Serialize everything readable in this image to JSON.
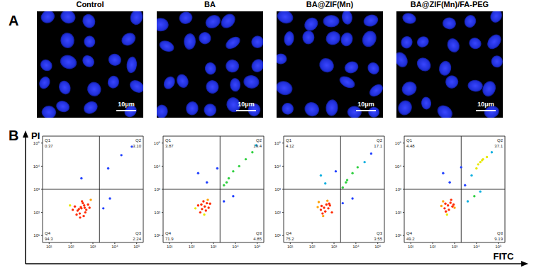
{
  "figure": {
    "panel_labels": [
      "A",
      "B"
    ],
    "xlabel": "FITC",
    "ylabel": "PI"
  },
  "images": {
    "titles": [
      "Control",
      "BA",
      "BA@ZIF(Mn)",
      "BA@ZIF(Mn)/FA-PEG"
    ],
    "scale_bar": "10μm"
  },
  "chart_data": [
    {
      "type": "scatter",
      "log": true,
      "xlim": [
        5,
        200000
      ],
      "ylim": [
        5,
        200000
      ],
      "xticks": [
        {
          "value": 10,
          "label": "10¹"
        },
        {
          "value": 100,
          "label": "10²"
        },
        {
          "value": 1000,
          "label": "10³"
        },
        {
          "value": 10000,
          "label": "10⁴"
        },
        {
          "value": 100000,
          "label": "10⁵"
        }
      ],
      "yticks": [
        {
          "value": 10,
          "label": "10¹"
        },
        {
          "value": 100,
          "label": "10²"
        },
        {
          "value": 1000,
          "label": "10³"
        },
        {
          "value": 10000,
          "label": "10⁴"
        },
        {
          "value": 100000,
          "label": "10⁵"
        }
      ],
      "gates": {
        "x": 2000,
        "y": 1000
      },
      "quadrants": [
        {
          "name": "Q1",
          "value": 0.37
        },
        {
          "name": "Q2",
          "value": 3.1,
          "label": "3.10"
        },
        {
          "name": "Q3",
          "value": 2.24
        },
        {
          "name": "Q4",
          "value": 94.3
        }
      ],
      "points": {
        "x": [
          300,
          200,
          400,
          250,
          500,
          350,
          150,
          600,
          280,
          180,
          450,
          320,
          700,
          120,
          260,
          800,
          90,
          380,
          230,
          420,
          5000,
          20000,
          60000,
          3000,
          6000,
          300
        ],
        "y": [
          150,
          120,
          200,
          90,
          130,
          250,
          180,
          220,
          170,
          80,
          100,
          300,
          160,
          130,
          60,
          350,
          200,
          70,
          140,
          160,
          8000,
          30000,
          70000,
          150,
          400,
          3000
        ]
      }
    },
    {
      "type": "scatter",
      "log": true,
      "xlim": [
        5,
        200000
      ],
      "ylim": [
        5,
        200000
      ],
      "xticks": [
        {
          "value": 10,
          "label": "10¹"
        },
        {
          "value": 100,
          "label": "10²"
        },
        {
          "value": 1000,
          "label": "10³"
        },
        {
          "value": 10000,
          "label": "10⁴"
        },
        {
          "value": 100000,
          "label": "10⁵"
        }
      ],
      "yticks": [
        {
          "value": 10,
          "label": "10¹"
        },
        {
          "value": 100,
          "label": "10²"
        },
        {
          "value": 1000,
          "label": "10³"
        },
        {
          "value": 10000,
          "label": "10⁴"
        },
        {
          "value": 100000,
          "label": "10⁵"
        }
      ],
      "gates": {
        "x": 2000,
        "y": 1000
      },
      "quadrants": [
        {
          "name": "Q1",
          "value": 3.87
        },
        {
          "name": "Q2",
          "value": 19.4
        },
        {
          "name": "Q3",
          "value": 4.85
        },
        {
          "name": "Q4",
          "value": 71.9
        }
      ],
      "points": {
        "x": [
          400,
          300,
          500,
          250,
          600,
          350,
          200,
          700,
          450,
          150,
          380,
          550,
          280,
          3000,
          5000,
          8000,
          15000,
          30000,
          60000,
          90000,
          4000,
          500,
          200,
          1500,
          3000,
          8000
        ],
        "y": [
          180,
          140,
          250,
          100,
          160,
          300,
          200,
          240,
          120,
          150,
          80,
          350,
          220,
          1500,
          3000,
          6000,
          10000,
          20000,
          40000,
          80000,
          2000,
          2000,
          5000,
          8000,
          300,
          500
        ]
      }
    },
    {
      "type": "scatter",
      "log": true,
      "xlim": [
        5,
        200000
      ],
      "ylim": [
        5,
        200000
      ],
      "xticks": [
        {
          "value": 10,
          "label": "10¹"
        },
        {
          "value": 100,
          "label": "10²"
        },
        {
          "value": 1000,
          "label": "10³"
        },
        {
          "value": 10000,
          "label": "10⁴"
        },
        {
          "value": 100000,
          "label": "10⁵"
        }
      ],
      "yticks": [
        {
          "value": 10,
          "label": "10¹"
        },
        {
          "value": 100,
          "label": "10²"
        },
        {
          "value": 1000,
          "label": "10³"
        },
        {
          "value": 10000,
          "label": "10⁴"
        },
        {
          "value": 100000,
          "label": "10⁵"
        }
      ],
      "gates": {
        "x": 2000,
        "y": 1000
      },
      "quadrants": [
        {
          "name": "Q1",
          "value": 4.12
        },
        {
          "name": "Q2",
          "value": 17.1
        },
        {
          "name": "Q3",
          "value": 3.55
        },
        {
          "name": "Q4",
          "value": 75.2
        }
      ],
      "points": {
        "x": [
          350,
          250,
          450,
          300,
          550,
          200,
          650,
          400,
          180,
          500,
          320,
          600,
          270,
          2500,
          4000,
          7000,
          12000,
          25000,
          50000,
          3500,
          400,
          250,
          1200,
          2500,
          7000,
          800
        ],
        "y": [
          160,
          130,
          220,
          90,
          150,
          280,
          200,
          110,
          170,
          320,
          70,
          240,
          190,
          1200,
          2500,
          5000,
          9000,
          15000,
          35000,
          2000,
          1800,
          4000,
          6000,
          250,
          400,
          100
        ]
      }
    },
    {
      "type": "scatter",
      "log": true,
      "xlim": [
        5,
        200000
      ],
      "ylim": [
        5,
        200000
      ],
      "xticks": [
        {
          "value": 10,
          "label": "10¹"
        },
        {
          "value": 100,
          "label": "10²"
        },
        {
          "value": 1000,
          "label": "10³"
        },
        {
          "value": 10000,
          "label": "10⁴"
        },
        {
          "value": 100000,
          "label": "10⁵"
        }
      ],
      "yticks": [
        {
          "value": 10,
          "label": "10¹"
        },
        {
          "value": 100,
          "label": "10²"
        },
        {
          "value": 1000,
          "label": "10³"
        },
        {
          "value": 10000,
          "label": "10⁴"
        },
        {
          "value": 100000,
          "label": "10⁵"
        }
      ],
      "gates": {
        "x": 2000,
        "y": 1000
      },
      "quadrants": [
        {
          "name": "Q1",
          "value": 4.48
        },
        {
          "name": "Q2",
          "value": 37.1
        },
        {
          "name": "Q3",
          "value": 9.19
        },
        {
          "name": "Q4",
          "value": 49.2
        }
      ],
      "points": {
        "x": [
          500,
          350,
          650,
          400,
          800,
          300,
          900,
          550,
          250,
          700,
          450,
          380,
          1000,
          3000,
          6000,
          10000,
          15000,
          18000,
          20000,
          30000,
          50000,
          12000,
          600,
          300,
          2000,
          4000,
          8000,
          15000
        ],
        "y": [
          200,
          150,
          260,
          110,
          180,
          300,
          220,
          130,
          190,
          350,
          80,
          240,
          160,
          1500,
          4000,
          8000,
          15000,
          18000,
          20000,
          25000,
          40000,
          12000,
          2000,
          5000,
          9000,
          300,
          500,
          800
        ]
      }
    }
  ]
}
